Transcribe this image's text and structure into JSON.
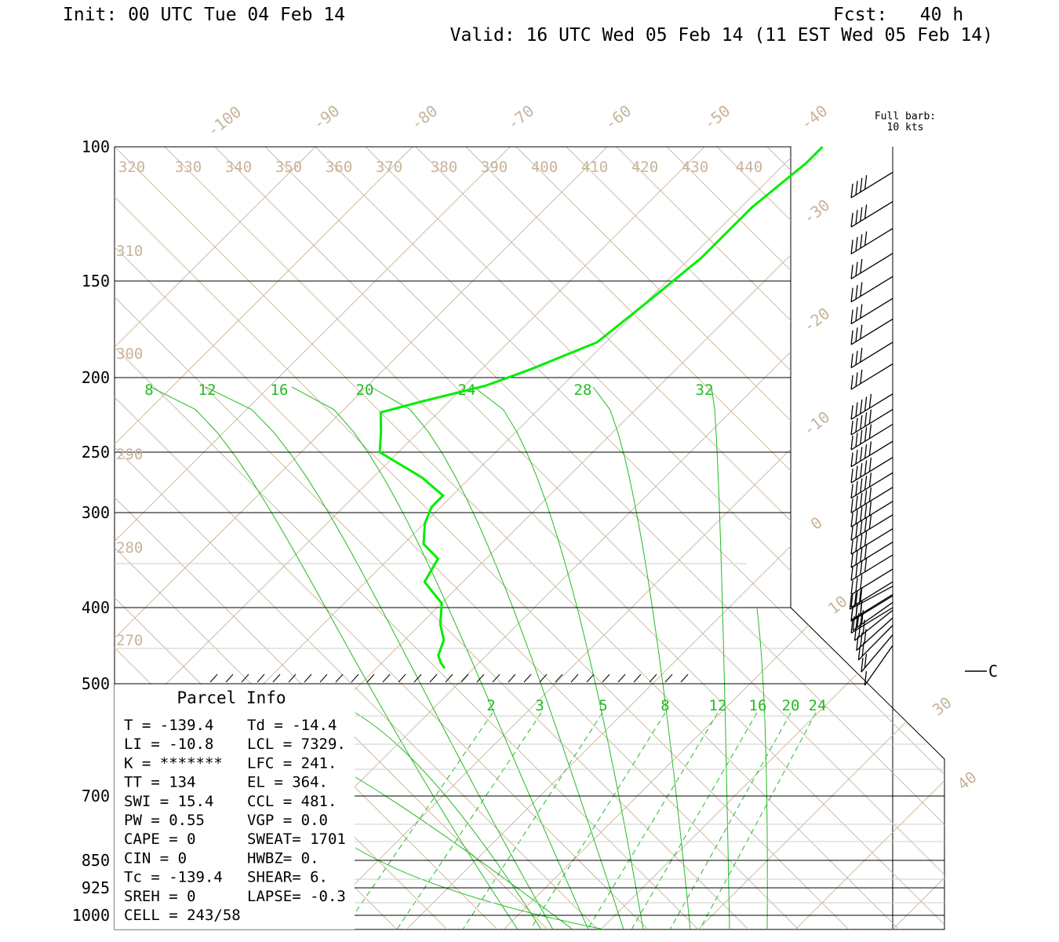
{
  "header": {
    "init": "Init: 00 UTC Tue 04 Feb 14",
    "fcst": "Fcst:   40 h",
    "valid": "Valid: 16 UTC Wed 05 Feb 14 (11 EST Wed 05 Feb 14)"
  },
  "barb_legend": {
    "line1": "Full barb:",
    "line2": "10 kts"
  },
  "parcel_info": {
    "title": "Parcel Info",
    "rows": [
      [
        "T  =   -139.4",
        "Td = -14.4"
      ],
      [
        "LI =    -10.8",
        "LCL = 7329."
      ],
      [
        "K  = *******",
        "LFC =  241."
      ],
      [
        "TT =      134",
        "EL  =  364."
      ],
      [
        "SWI =    15.4",
        "CCL =  481."
      ],
      [
        "PW =     0.55",
        "VGP =   0.0"
      ],
      [
        "CAPE =      0",
        "SWEAT= 1701"
      ],
      [
        "CIN =       0",
        "HWBZ=    0."
      ],
      [
        "Tc =  -139.4",
        "SHEAR=   6."
      ],
      [
        "SREH =      0",
        "LAPSE= -0.3"
      ],
      [
        "CELL = 243/58",
        ""
      ]
    ]
  },
  "colors": {
    "isobar": "#000000",
    "dry_adiabat": "#c8b49a",
    "isotherm": "#c8b49a",
    "moist_adiabat": "#22bb22",
    "mixing_ratio": "#22bb22",
    "sounding": "#00ee00",
    "wind_barb": "#000000"
  },
  "wind_marker": "C",
  "chart_data": {
    "type": "skew-t",
    "pressure_levels": [
      "100",
      "150",
      "200",
      "250",
      "300",
      "400",
      "500",
      "700",
      "850",
      "925",
      "1000"
    ],
    "pressure_values": [
      100,
      150,
      200,
      250,
      300,
      400,
      500,
      700,
      850,
      925,
      1000
    ],
    "isotherm_labels": [
      "-100",
      "-90",
      "-80",
      "-70",
      "-60",
      "-50",
      "-40",
      "-30",
      "-20",
      "-10",
      "0",
      "10",
      "30",
      "40"
    ],
    "theta_labels_top": [
      "320",
      "330",
      "340",
      "350",
      "360",
      "370",
      "380",
      "390",
      "400",
      "410",
      "420",
      "430",
      "440"
    ],
    "theta_labels_left": [
      "310",
      "300",
      "290",
      "280",
      "270"
    ],
    "moist_adiabat_labels": [
      "8",
      "12",
      "16",
      "20",
      "24",
      "28",
      "32"
    ],
    "mixing_ratio_labels": [
      "2",
      "3",
      "5",
      "8",
      "12",
      "16",
      "20",
      "24"
    ],
    "sounding_temperature": {
      "name": "Temperature",
      "pressure_hpa": [
        100,
        105,
        120,
        140,
        160,
        180,
        195,
        205,
        215,
        222,
        235,
        250,
        270,
        285,
        295,
        310,
        330,
        345,
        370,
        395,
        420,
        440,
        460,
        470,
        478
      ],
      "temp_c": [
        -46,
        -46,
        -47,
        -47,
        -48,
        -49,
        -53,
        -56,
        -61,
        -64,
        -62,
        -60,
        -53,
        -49,
        -49,
        -48,
        -46,
        -43,
        -42,
        -38,
        -36,
        -34,
        -33,
        -32,
        -31
      ]
    },
    "wind_barbs": {
      "pressure_hpa": [
        108,
        118,
        128,
        138,
        148,
        158,
        168,
        180,
        192,
        210,
        220,
        230,
        242,
        254,
        266,
        278,
        290,
        302,
        315,
        328,
        341,
        356,
        370,
        386,
        400,
        412,
        422,
        432,
        442,
        452,
        462,
        475,
        490
      ],
      "speed_kt": [
        40,
        40,
        40,
        30,
        30,
        30,
        30,
        30,
        30,
        50,
        50,
        50,
        50,
        50,
        50,
        50,
        50,
        50,
        40,
        40,
        40,
        30,
        30,
        30,
        30,
        30,
        30,
        30,
        30,
        30,
        20,
        20,
        10
      ]
    }
  }
}
